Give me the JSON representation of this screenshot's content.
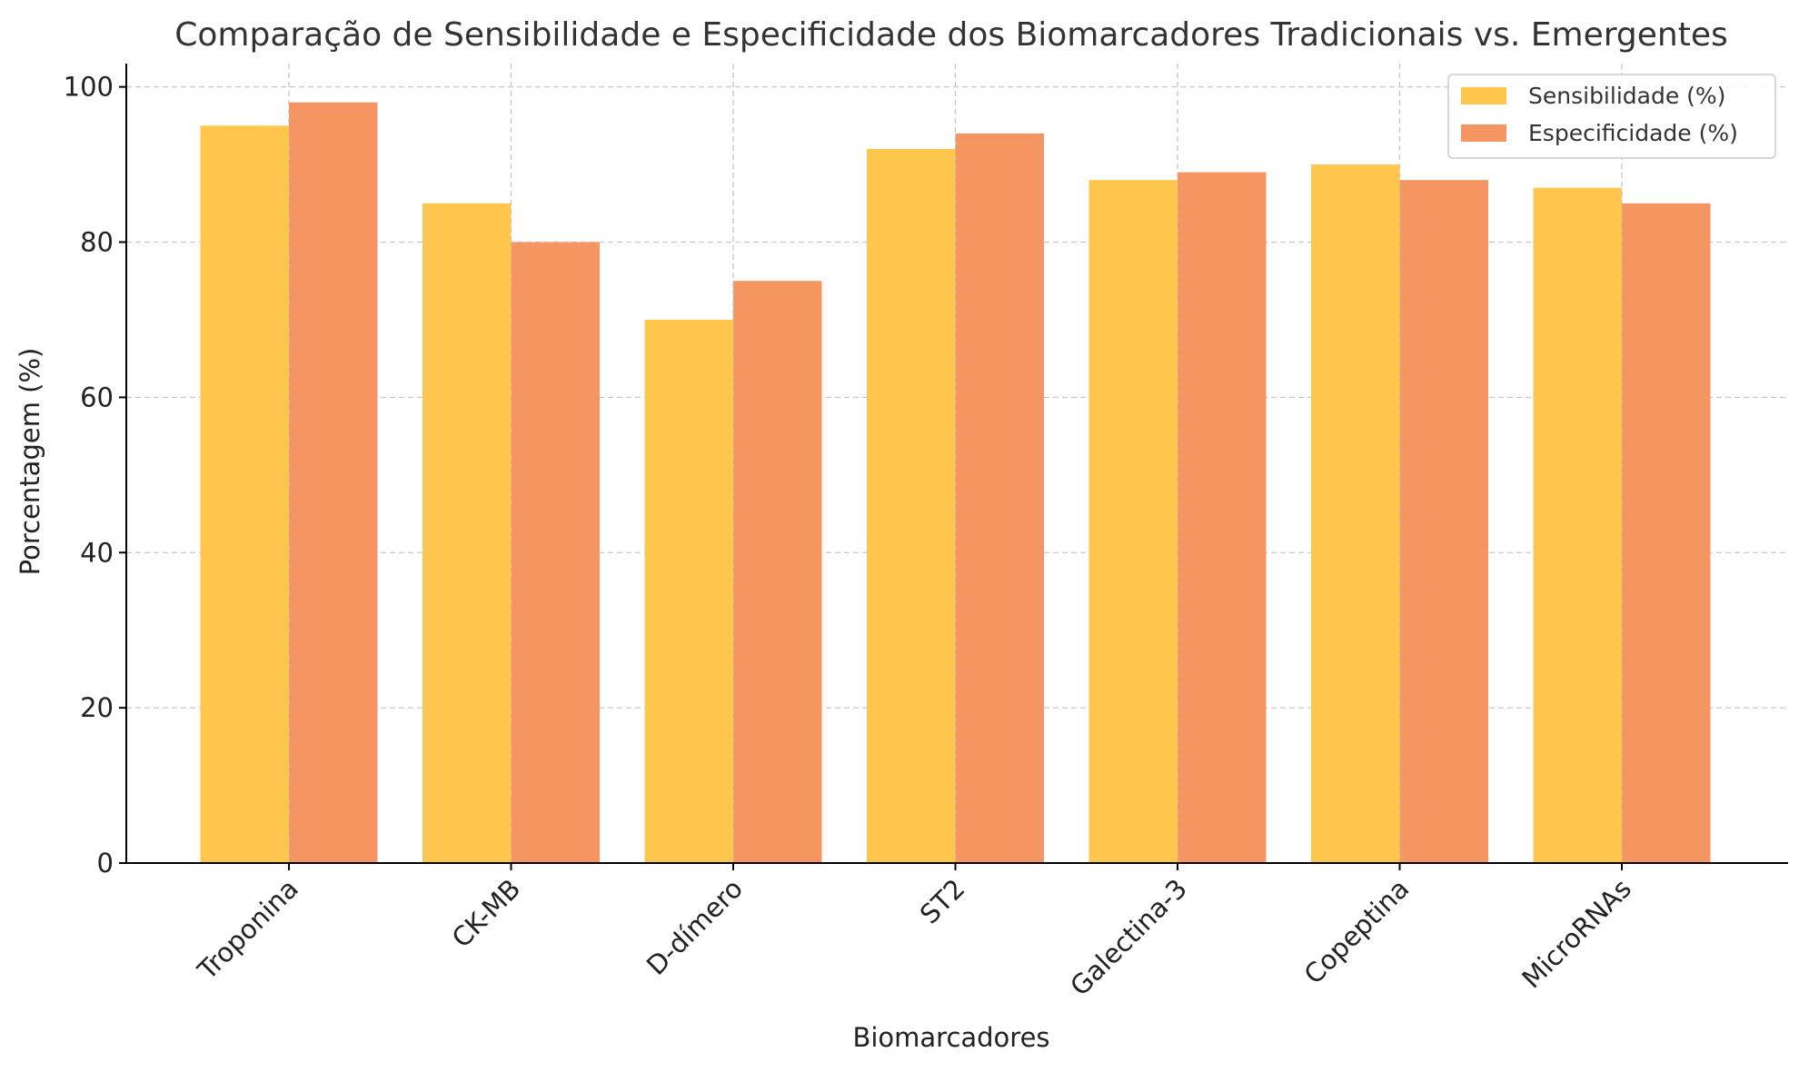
{
  "chart_data": {
    "type": "bar",
    "title": "Comparação de Sensibilidade e Especificidade dos Biomarcadores Tradicionais vs. Emergentes",
    "xlabel": "Biomarcadores",
    "ylabel": "Porcentagem (%)",
    "categories": [
      "Troponina",
      "CK-MB",
      "D-dímero",
      "ST2",
      "Galectina-3",
      "Copeptina",
      "MicroRNAs"
    ],
    "series": [
      {
        "name": "Sensibilidade (%)",
        "values": [
          95,
          85,
          70,
          92,
          88,
          90,
          87
        ],
        "color": "#FFC64D"
      },
      {
        "name": "Especificidade (%)",
        "values": [
          98,
          80,
          75,
          94,
          89,
          88,
          85
        ],
        "color": "#F59562"
      }
    ],
    "ylim": [
      0,
      103
    ],
    "yticks": [
      0,
      20,
      40,
      60,
      80,
      100
    ],
    "grid": true,
    "legend_position": "top-right"
  }
}
